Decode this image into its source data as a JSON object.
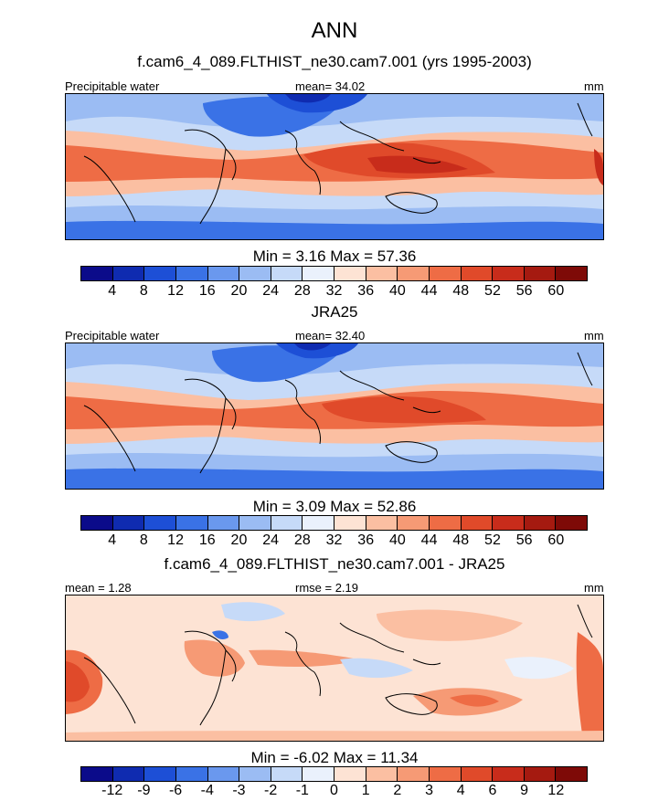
{
  "figure": {
    "title": "ANN",
    "units": "mm"
  },
  "colors": {
    "precip_scale": [
      "#0b0b8a",
      "#0f2bb0",
      "#1d4fd6",
      "#3a72e6",
      "#6a98ee",
      "#9bbcf3",
      "#c6daf8",
      "#eaf1fc",
      "#fde3d4",
      "#fbbfa2",
      "#f69a75",
      "#ee6c45",
      "#e04a2a",
      "#c82c1b",
      "#a51a10",
      "#7e0a07"
    ],
    "diff_scale": [
      "#0b0b8a",
      "#0f2bb0",
      "#1d4fd6",
      "#3a72e6",
      "#6a98ee",
      "#9bbcf3",
      "#c6daf8",
      "#eaf1fc",
      "#fde3d4",
      "#fbbfa2",
      "#f69a75",
      "#ee6c45",
      "#e04a2a",
      "#c82c1b",
      "#a51a10",
      "#7e0a07"
    ]
  },
  "chart_data": [
    {
      "type": "heatmap",
      "title": "f.cam6_4_089.FLTHIST_ne30.cam7.001 (yrs 1995-2003)",
      "left_label": "Precipitable water",
      "center_label": "mean=  34.02",
      "right_label": "mm",
      "mean": 34.02,
      "min": 3.16,
      "max": 57.36,
      "minmax_text": "Min =   3.16 Max =  57.36",
      "contour_levels": [
        4,
        8,
        12,
        16,
        20,
        24,
        28,
        32,
        36,
        40,
        44,
        48,
        52,
        56,
        60
      ],
      "tick_labels": [
        "4",
        "8",
        "12",
        "16",
        "20",
        "24",
        "28",
        "32",
        "36",
        "40",
        "44",
        "48",
        "52",
        "56",
        "60"
      ]
    },
    {
      "type": "heatmap",
      "title": "JRA25",
      "left_label": "Precipitable water",
      "center_label": "mean=  32.40",
      "right_label": "mm",
      "mean": 32.4,
      "min": 3.09,
      "max": 52.86,
      "minmax_text": "Min =   3.09 Max =  52.86",
      "contour_levels": [
        4,
        8,
        12,
        16,
        20,
        24,
        28,
        32,
        36,
        40,
        44,
        48,
        52,
        56,
        60
      ],
      "tick_labels": [
        "4",
        "8",
        "12",
        "16",
        "20",
        "24",
        "28",
        "32",
        "36",
        "40",
        "44",
        "48",
        "52",
        "56",
        "60"
      ]
    },
    {
      "type": "heatmap",
      "title": "f.cam6_4_089.FLTHIST_ne30.cam7.001 - JRA25",
      "left_label": "mean =   1.28",
      "center_label": "rmse =   2.19",
      "right_label": "mm",
      "mean": 1.28,
      "rmse": 2.19,
      "min": -6.02,
      "max": 11.34,
      "minmax_text": "Min =  -6.02 Max =  11.34",
      "contour_levels": [
        -12,
        -9,
        -6,
        -4,
        -3,
        -2,
        -1,
        0,
        1,
        2,
        3,
        4,
        6,
        9,
        12
      ],
      "tick_labels": [
        "-12",
        "-9",
        "-6",
        "-4",
        "-3",
        "-2",
        "-1",
        "0",
        "1",
        "2",
        "3",
        "4",
        "6",
        "9",
        "12"
      ]
    }
  ]
}
